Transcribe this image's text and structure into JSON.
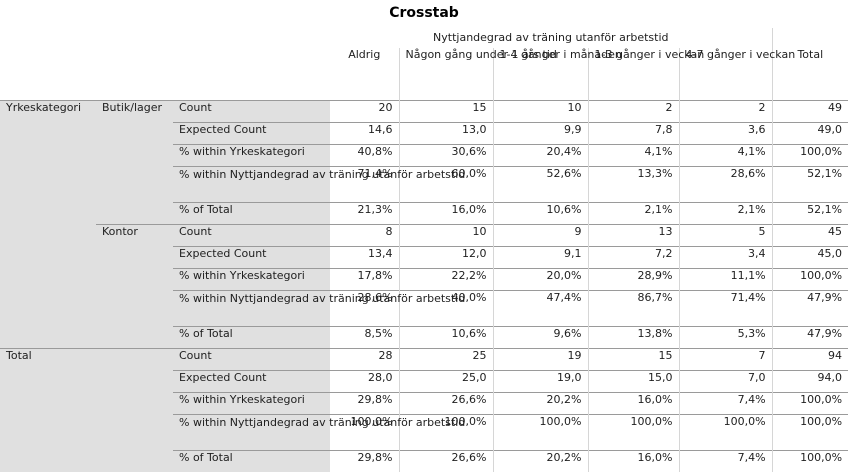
{
  "title": "Crosstab",
  "col_group_header": "Nyttjandegrad av träning utanför arbetstid",
  "columns": [
    "Aldrig",
    "Någon gång under 1 års tid",
    "1-4 gånger i månaden",
    "1-3 gånger i veckan",
    "4-7 gånger i veckan",
    "Total"
  ],
  "row_var": "Yrkeskategori",
  "groups": [
    {
      "label": "Butik/lager",
      "rows": [
        {
          "stat": "Count",
          "values": [
            "20",
            "15",
            "10",
            "2",
            "2",
            "49"
          ]
        },
        {
          "stat": "Expected Count",
          "values": [
            "14,6",
            "13,0",
            "9,9",
            "7,8",
            "3,6",
            "49,0"
          ]
        },
        {
          "stat": "% within Yrkeskategori",
          "values": [
            "40,8%",
            "30,6%",
            "20,4%",
            "4,1%",
            "4,1%",
            "100,0%"
          ]
        },
        {
          "stat": "% within Nyttjandegrad av träning utanför arbetstid",
          "values": [
            "71,4%",
            "60,0%",
            "52,6%",
            "13,3%",
            "28,6%",
            "52,1%"
          ]
        },
        {
          "stat": "% of Total",
          "values": [
            "21,3%",
            "16,0%",
            "10,6%",
            "2,1%",
            "2,1%",
            "52,1%"
          ]
        }
      ]
    },
    {
      "label": "Kontor",
      "rows": [
        {
          "stat": "Count",
          "values": [
            "8",
            "10",
            "9",
            "13",
            "5",
            "45"
          ]
        },
        {
          "stat": "Expected Count",
          "values": [
            "13,4",
            "12,0",
            "9,1",
            "7,2",
            "3,4",
            "45,0"
          ]
        },
        {
          "stat": "% within Yrkeskategori",
          "values": [
            "17,8%",
            "22,2%",
            "20,0%",
            "28,9%",
            "11,1%",
            "100,0%"
          ]
        },
        {
          "stat": "% within Nyttjandegrad av träning utanför arbetstid",
          "values": [
            "28,6%",
            "40,0%",
            "47,4%",
            "86,7%",
            "71,4%",
            "47,9%"
          ]
        },
        {
          "stat": "% of Total",
          "values": [
            "8,5%",
            "10,6%",
            "9,6%",
            "13,8%",
            "5,3%",
            "47,9%"
          ]
        }
      ]
    }
  ],
  "total": {
    "label": "Total",
    "rows": [
      {
        "stat": "Count",
        "values": [
          "28",
          "25",
          "19",
          "15",
          "7",
          "94"
        ]
      },
      {
        "stat": "Expected Count",
        "values": [
          "28,0",
          "25,0",
          "19,0",
          "15,0",
          "7,0",
          "94,0"
        ]
      },
      {
        "stat": "% within Yrkeskategori",
        "values": [
          "29,8%",
          "26,6%",
          "20,2%",
          "16,0%",
          "7,4%",
          "100,0%"
        ]
      },
      {
        "stat": "% within Nyttjandegrad av träning utanför arbetstid",
        "values": [
          "100,0%",
          "100,0%",
          "100,0%",
          "100,0%",
          "100,0%",
          "100,0%"
        ]
      },
      {
        "stat": "% of Total",
        "values": [
          "29,8%",
          "26,6%",
          "20,2%",
          "16,0%",
          "7,4%",
          "100,0%"
        ]
      }
    ]
  }
}
